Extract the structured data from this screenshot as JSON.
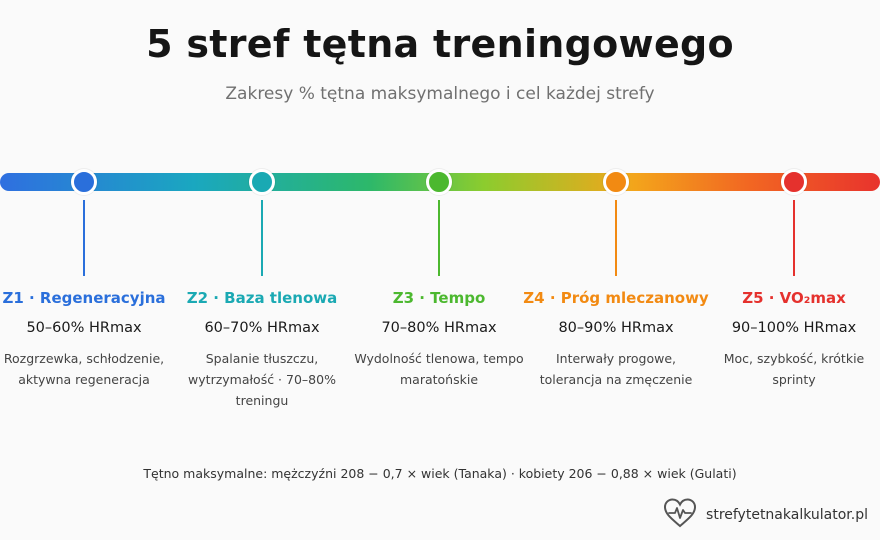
{
  "header": {
    "title": "5 stref tętna treningowego",
    "subtitle": "Zakresy % tętna maksymalnego i cel każdej strefy"
  },
  "zones": [
    {
      "name": "Z1 · Regeneracyjna",
      "range": "50–60% HRmax",
      "desc": "Rozgrzewka, schłodzenie, aktywna regeneracja",
      "color": "#2a6fdb"
    },
    {
      "name": "Z2 · Baza tlenowa",
      "range": "60–70% HRmax",
      "desc": "Spalanie tłuszczu, wytrzymałość · 70–80% treningu",
      "color": "#1aa9b3"
    },
    {
      "name": "Z3 · Tempo",
      "range": "70–80% HRmax",
      "desc": "Wydolność tlenowa, tempo maratońskie",
      "color": "#4cb82f"
    },
    {
      "name": "Z4 · Próg mleczanowy",
      "range": "80–90% HRmax",
      "desc": "Interwały progowe, tolerancja na zmęczenie",
      "color": "#f28a12"
    },
    {
      "name": "Z5 · VO₂max",
      "range": "90–100% HRmax",
      "desc": "Moc, szybkość, krótkie sprinty",
      "color": "#e5312d"
    }
  ],
  "footer": {
    "formula": "Tętno maksymalne: mężczyźni 208 − 0,7 × wiek (Tanaka) · kobiety 206 − 0,88 × wiek (Gulati)",
    "brand": "strefytetnakalkulator.pl"
  },
  "icons": {
    "brand_icon": "heart-pulse-icon"
  }
}
